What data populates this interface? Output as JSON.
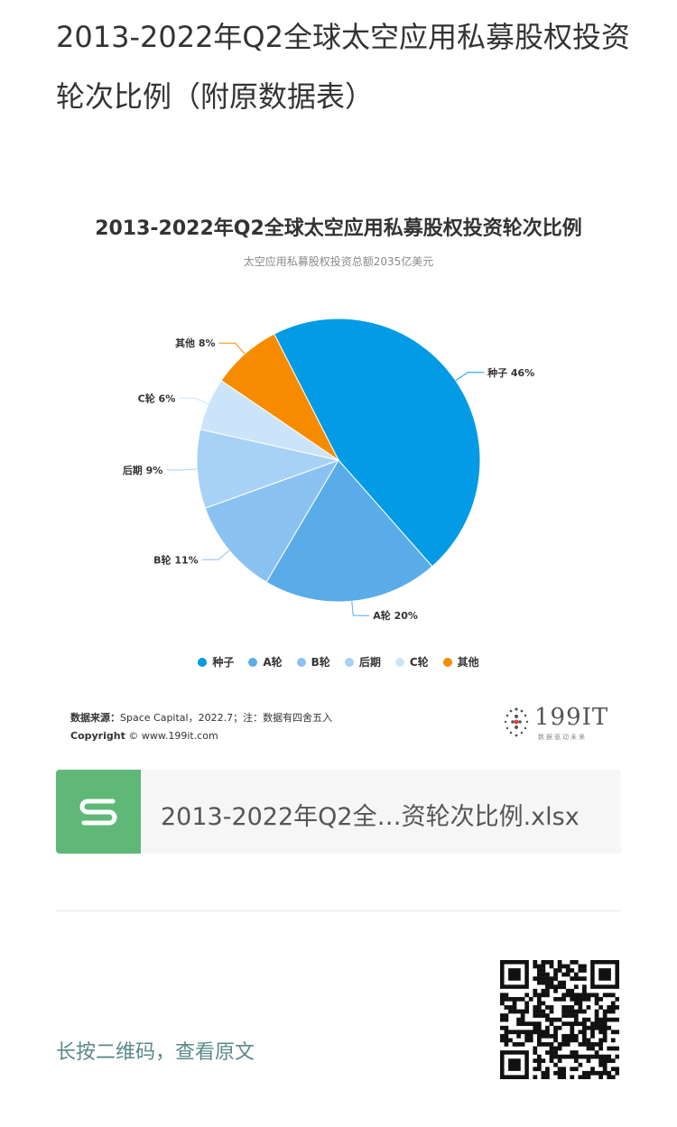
{
  "article": {
    "title": "2013-2022年Q2全球太空应用私募股权投资轮次比例（附原数据表）"
  },
  "chart_data": {
    "type": "pie",
    "title": "2013-2022年Q2全球太空应用私募股权投资轮次比例",
    "subtitle": "太空应用私募股权投资总额2035亿美元",
    "slices": [
      {
        "label": "种子",
        "value": 46,
        "display": "种子 46%",
        "color": "#039be5"
      },
      {
        "label": "A轮",
        "value": 20,
        "display": "A轮 20%",
        "color": "#5aace8"
      },
      {
        "label": "B轮",
        "value": 11,
        "display": "B轮 11%",
        "color": "#89c2f1"
      },
      {
        "label": "后期",
        "value": 9,
        "display": "后期 9%",
        "color": "#a8d2f5"
      },
      {
        "label": "C轮",
        "value": 6,
        "display": "C轮 6%",
        "color": "#cbe4f9"
      },
      {
        "label": "其他",
        "value": 8,
        "display": "其他 8%",
        "color": "#f68b00"
      }
    ],
    "legend_position": "bottom"
  },
  "source": {
    "label": "数据来源：",
    "text": "Space Capital，2022.7；注：数据有四舍五入",
    "copyright_label": "Copyright",
    "copyright_text": "© www.199it.com"
  },
  "brand": {
    "logo_text": "199IT",
    "logo_sub": "数据驱动未来"
  },
  "attachment": {
    "file_name": "2013-2022年Q2全…资轮次比例.xlsx",
    "icon": "spreadsheet-icon"
  },
  "footer": {
    "qr_hint": "长按二维码，查看原文",
    "qr_icon": "qr-code-icon"
  }
}
